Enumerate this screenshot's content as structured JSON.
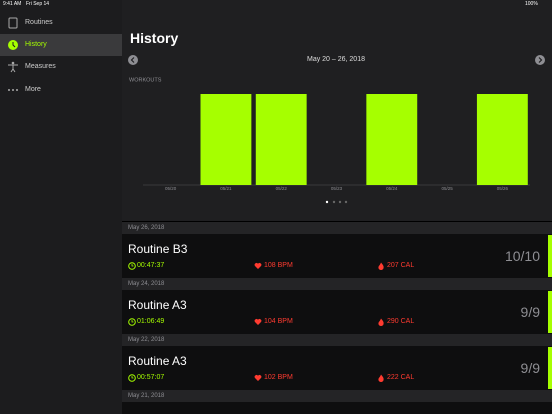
{
  "status_bar": {
    "time": "9:41 AM",
    "date": "Fri Sep 14",
    "battery": "100%"
  },
  "sidebar": {
    "items": [
      {
        "label": "Routines"
      },
      {
        "label": "History"
      },
      {
        "label": "Measures"
      },
      {
        "label": "More"
      }
    ]
  },
  "header": {
    "title": "History",
    "range": "May 20 – 26, 2018"
  },
  "chart_data": {
    "type": "bar",
    "title": "WORKOUTS",
    "categories": [
      "05/20",
      "05/21",
      "05/22",
      "05/23",
      "05/24",
      "05/25",
      "05/26"
    ],
    "values": [
      0,
      1,
      1,
      0,
      1,
      0,
      1
    ],
    "color": "#a6ff00",
    "ylim": [
      0,
      1
    ]
  },
  "history": [
    {
      "date": "May 26, 2018",
      "routine": "Routine B3",
      "duration": "00:47:37",
      "heart_rate": "108 BPM",
      "calories": "207 CAL",
      "score": "10/10"
    },
    {
      "date": "May 24, 2018",
      "routine": "Routine A3",
      "duration": "01:06:49",
      "heart_rate": "104 BPM",
      "calories": "290 CAL",
      "score": "9/9"
    },
    {
      "date": "May 22, 2018",
      "routine": "Routine A3",
      "duration": "00:57:07",
      "heart_rate": "102 BPM",
      "calories": "222 CAL",
      "score": "9/9"
    },
    {
      "date": "May 21, 2018"
    }
  ]
}
